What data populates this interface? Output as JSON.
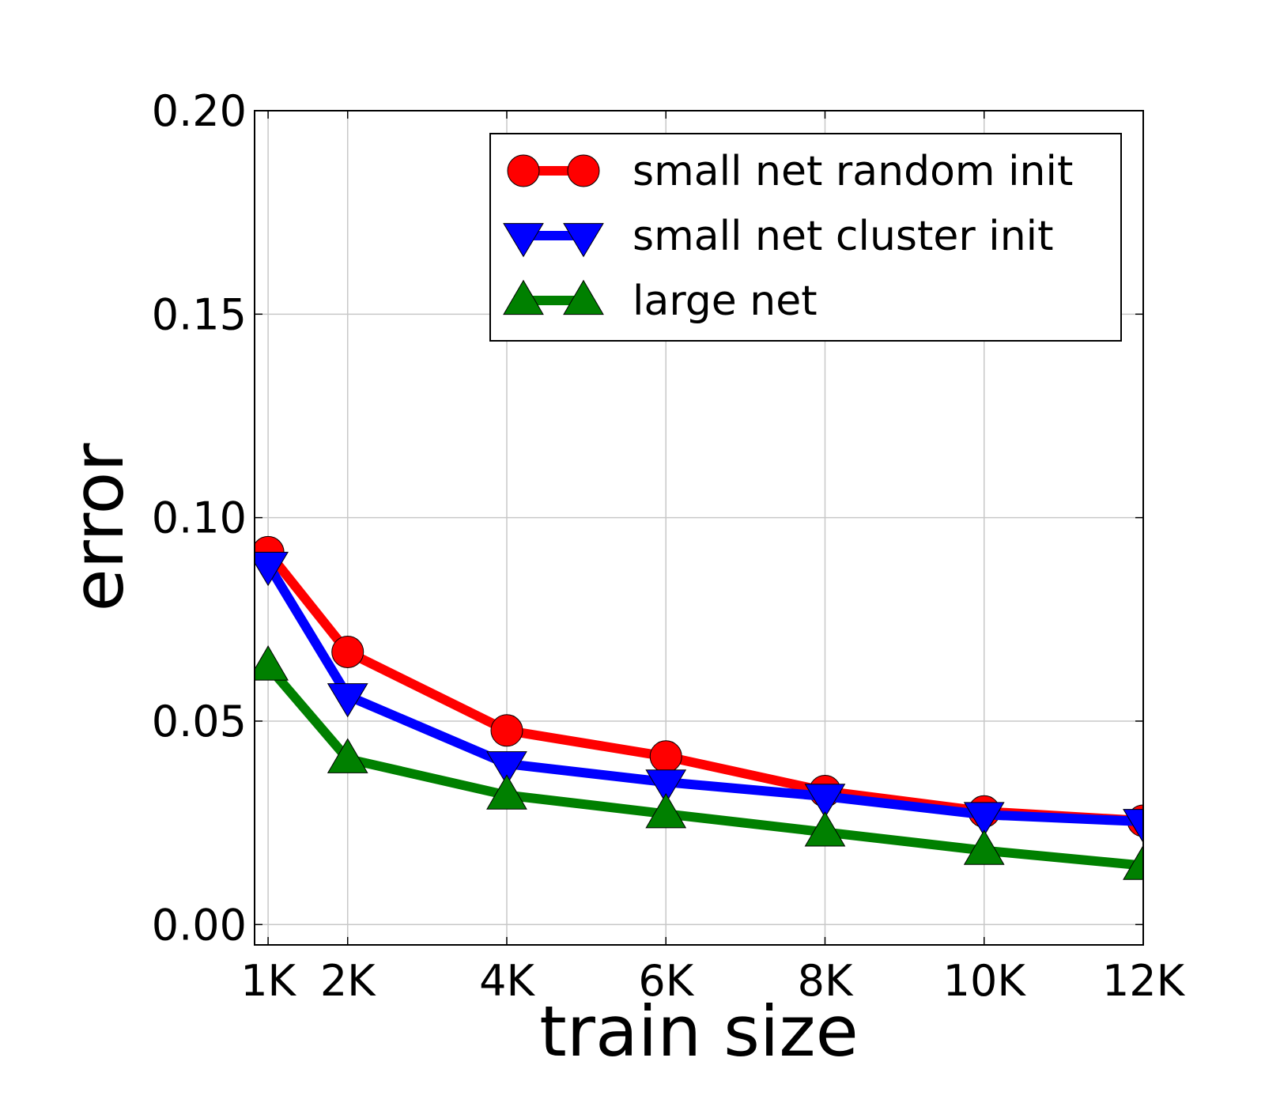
{
  "chart_data": {
    "type": "line",
    "title": "",
    "xlabel": "train size",
    "ylabel": "error",
    "x": [
      1,
      2,
      4,
      6,
      8,
      10,
      12
    ],
    "x_tick_values": [
      1,
      2,
      4,
      6,
      8,
      10,
      12
    ],
    "x_tick_labels": [
      "1K",
      "2K",
      "4K",
      "6K",
      "8K",
      "10K",
      "12K"
    ],
    "xlim": [
      0.83,
      12
    ],
    "y_tick_values": [
      0.0,
      0.05,
      0.1,
      0.15,
      0.2
    ],
    "y_tick_labels": [
      "0.00",
      "0.05",
      "0.10",
      "0.15",
      "0.20"
    ],
    "ylim": [
      -0.005,
      0.2
    ],
    "grid": true,
    "legend_position": "top-right",
    "series": [
      {
        "name": "small net random init",
        "color": "#ff0000",
        "marker": "circle",
        "values": [
          0.0915,
          0.067,
          0.0477,
          0.0413,
          0.0328,
          0.0278,
          0.0255
        ]
      },
      {
        "name": "small net cluster init",
        "color": "#0000ff",
        "marker": "triangle-down",
        "values": [
          0.0885,
          0.0562,
          0.0395,
          0.035,
          0.0315,
          0.027,
          0.0253
        ]
      },
      {
        "name": "large net",
        "color": "#008000",
        "marker": "triangle-up",
        "values": [
          0.0635,
          0.0407,
          0.0318,
          0.0272,
          0.0227,
          0.0182,
          0.0145
        ]
      }
    ]
  }
}
